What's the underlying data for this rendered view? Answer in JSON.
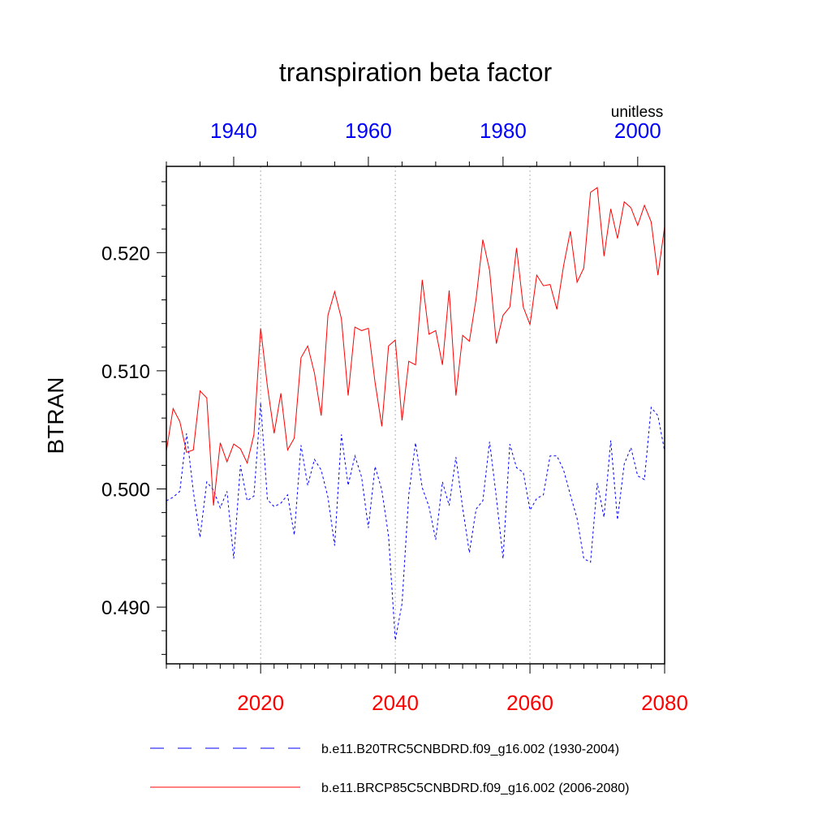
{
  "chart_data": {
    "type": "line",
    "title": "transpiration beta factor",
    "units": "unitless",
    "ylabel": "BTRAN",
    "ylim": [
      0.4852,
      0.5273
    ],
    "y_ticks": [
      0.49,
      0.5,
      0.51,
      0.52
    ],
    "y_tick_labels": [
      "0.490",
      "0.500",
      "0.510",
      "0.520"
    ],
    "bottom_axis": {
      "color": "#ff0000",
      "xlim": [
        2006,
        2080
      ],
      "ticks": [
        2020,
        2040,
        2060,
        2080
      ],
      "tick_labels": [
        "2020",
        "2040",
        "2060",
        "2080"
      ]
    },
    "top_axis": {
      "color": "#0000ff",
      "xlim": [
        1930,
        2004
      ],
      "ticks": [
        1940,
        1960,
        1980,
        2000
      ],
      "tick_labels": [
        "1940",
        "1960",
        "1980",
        "2000"
      ]
    },
    "grid": "vertical dotted at major bottom ticks",
    "series": [
      {
        "name": "b.e11.B20TRC5CNBDRD.f09_g16.002 (1930-2004)",
        "color": "#0000ff",
        "dash": "dashed",
        "axis": "top",
        "x_start": 1930,
        "values": [
          0.499,
          0.4993,
          0.4998,
          0.5047,
          0.4998,
          0.4959,
          0.5006,
          0.4999,
          0.4984,
          0.4998,
          0.4941,
          0.502,
          0.499,
          0.4994,
          0.5073,
          0.4991,
          0.4985,
          0.4988,
          0.4995,
          0.4961,
          0.5037,
          0.5003,
          0.5025,
          0.5016,
          0.4993,
          0.4952,
          0.5046,
          0.5003,
          0.5028,
          0.501,
          0.4967,
          0.5019,
          0.4999,
          0.496,
          0.4872,
          0.4903,
          0.4995,
          0.5039,
          0.5001,
          0.4985,
          0.4957,
          0.5006,
          0.4986,
          0.5027,
          0.4984,
          0.4946,
          0.4983,
          0.499,
          0.504,
          0.4993,
          0.4941,
          0.5038,
          0.5018,
          0.5014,
          0.4982,
          0.4992,
          0.4995,
          0.5028,
          0.5028,
          0.5016,
          0.4995,
          0.4975,
          0.4941,
          0.4938,
          0.5005,
          0.4976,
          0.5041,
          0.4974,
          0.5021,
          0.5035,
          0.5011,
          0.5008,
          0.5069,
          0.5062,
          0.5032
        ]
      },
      {
        "name": "b.e11.BRCP85C5CNBDRD.f09_g16.002 (2006-2080)",
        "color": "#ff0000",
        "dash": "solid",
        "axis": "bottom",
        "x_start": 2006,
        "values": [
          0.5032,
          0.5068,
          0.5057,
          0.5031,
          0.5033,
          0.5083,
          0.5077,
          0.4986,
          0.5039,
          0.5023,
          0.5038,
          0.5034,
          0.5022,
          0.5046,
          0.5136,
          0.5087,
          0.5047,
          0.5081,
          0.5033,
          0.5043,
          0.5111,
          0.5121,
          0.5098,
          0.5062,
          0.5147,
          0.5167,
          0.5144,
          0.5079,
          0.5137,
          0.5134,
          0.5136,
          0.509,
          0.5053,
          0.5121,
          0.5126,
          0.5058,
          0.5108,
          0.5105,
          0.5177,
          0.5131,
          0.5134,
          0.5105,
          0.5168,
          0.5079,
          0.513,
          0.5125,
          0.5161,
          0.5211,
          0.5185,
          0.5123,
          0.5147,
          0.5154,
          0.5204,
          0.5154,
          0.5139,
          0.5181,
          0.5172,
          0.5173,
          0.5152,
          0.5189,
          0.5218,
          0.5175,
          0.5187,
          0.5251,
          0.5255,
          0.5197,
          0.5237,
          0.5212,
          0.5243,
          0.5238,
          0.5223,
          0.524,
          0.5226,
          0.5181,
          0.5222
        ]
      }
    ]
  }
}
